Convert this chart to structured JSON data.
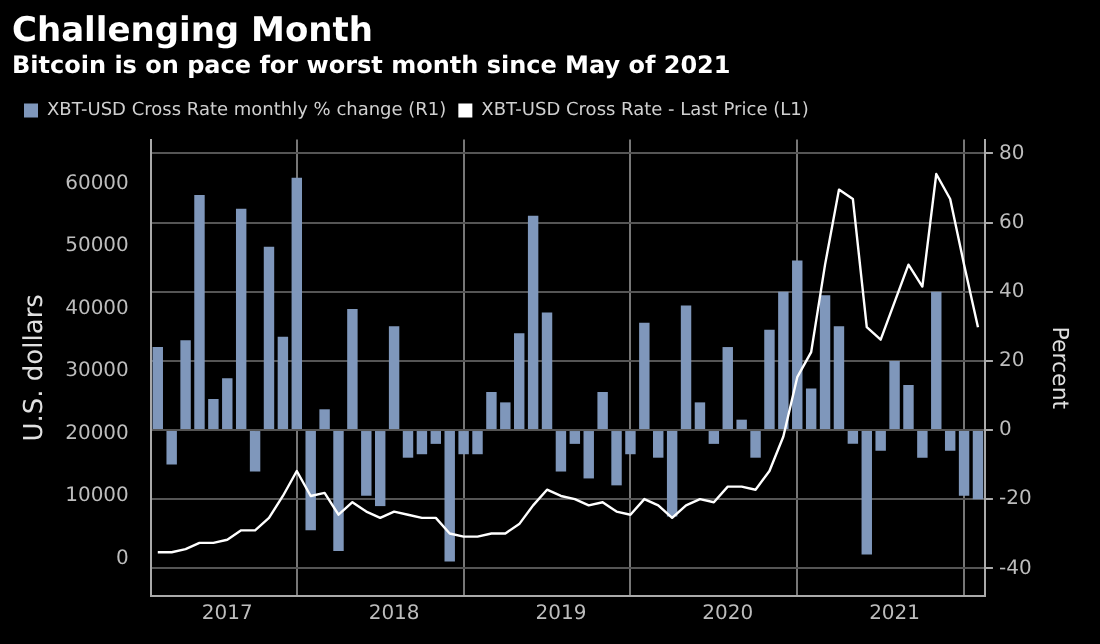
{
  "chart_data": {
    "type": "bar",
    "title": "Challenging Month",
    "subtitle": "Bitcoin is on pace for worst month since May of 2021",
    "ylabel": "U.S. dollars",
    "y2label": "Percent",
    "categories": [
      null,
      null,
      null,
      null,
      null,
      "2017",
      null,
      null,
      null,
      null,
      null,
      null,
      null,
      null,
      null,
      null,
      null,
      "2018",
      null,
      null,
      null,
      null,
      null,
      null,
      null,
      null,
      null,
      null,
      null,
      "2019",
      null,
      null,
      null,
      null,
      null,
      null,
      null,
      null,
      null,
      null,
      null,
      "2020",
      null,
      null,
      null,
      null,
      null,
      null,
      null,
      null,
      null,
      null,
      null,
      "2021",
      null,
      null,
      null,
      null,
      null,
      null
    ],
    "series": [
      {
        "name": "XBT-USD Cross Rate monthly % change (R1)",
        "axis": "y2",
        "color": "#7f97bb",
        "values": [
          24,
          -10,
          26,
          68,
          9,
          15,
          64,
          -12,
          53,
          27,
          73,
          -29,
          6,
          -35,
          35,
          -19,
          -22,
          30,
          -8,
          -7,
          -4,
          -38,
          -7,
          -7,
          11,
          8,
          28,
          62,
          34,
          -12,
          -4,
          -14,
          11,
          -16,
          -7,
          31,
          -8,
          -25,
          36,
          8,
          -4,
          24,
          3,
          -8,
          29,
          40,
          49,
          12,
          39,
          30,
          -4,
          -36,
          -6,
          20,
          13,
          -8,
          40,
          -6,
          -19,
          -20
        ]
      },
      {
        "name": "XBT-USD Cross Rate - Last Price (L1)",
        "type": "line",
        "color": "#ffffff",
        "values": [
          1000,
          1000,
          1500,
          2500,
          2500,
          3000,
          4500,
          4500,
          6500,
          10000,
          14000,
          10000,
          10500,
          7000,
          9000,
          7500,
          6500,
          7500,
          7000,
          6500,
          6500,
          4000,
          3500,
          3500,
          4000,
          4000,
          5500,
          8500,
          11000,
          10000,
          9500,
          8500,
          9000,
          7500,
          7000,
          9500,
          8500,
          6500,
          8500,
          9500,
          9000,
          11500,
          11500,
          11000,
          14000,
          19500,
          29000,
          33000,
          47000,
          59000,
          57500,
          37000,
          35000,
          41000,
          47000,
          43500,
          61500,
          57500,
          47000,
          37000
        ]
      }
    ],
    "ylim": [
      -6000,
      67000
    ],
    "yticks": [
      0,
      10000,
      20000,
      30000,
      40000,
      50000,
      60000
    ],
    "y2lim": [
      -48,
      84
    ],
    "y2ticks": [
      -40,
      -20,
      0,
      20,
      40,
      60,
      80
    ],
    "grid": true,
    "legend": "top left"
  }
}
